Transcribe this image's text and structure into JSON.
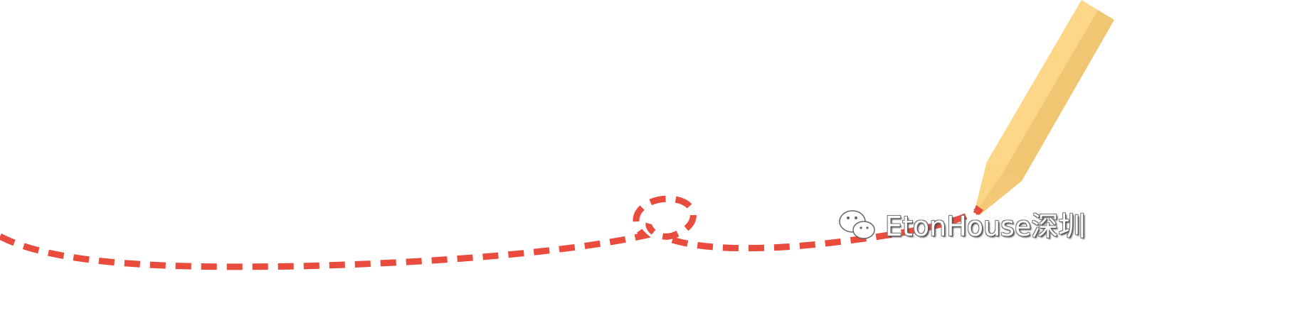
{
  "colors": {
    "dash_line": "#e94b3c",
    "pencil_light": "#fdd688",
    "pencil_dark": "#f0c673",
    "pencil_tip": "#e94b3c"
  },
  "watermark": {
    "icon": "wechat-icon",
    "text": "EtonHouse深圳"
  }
}
